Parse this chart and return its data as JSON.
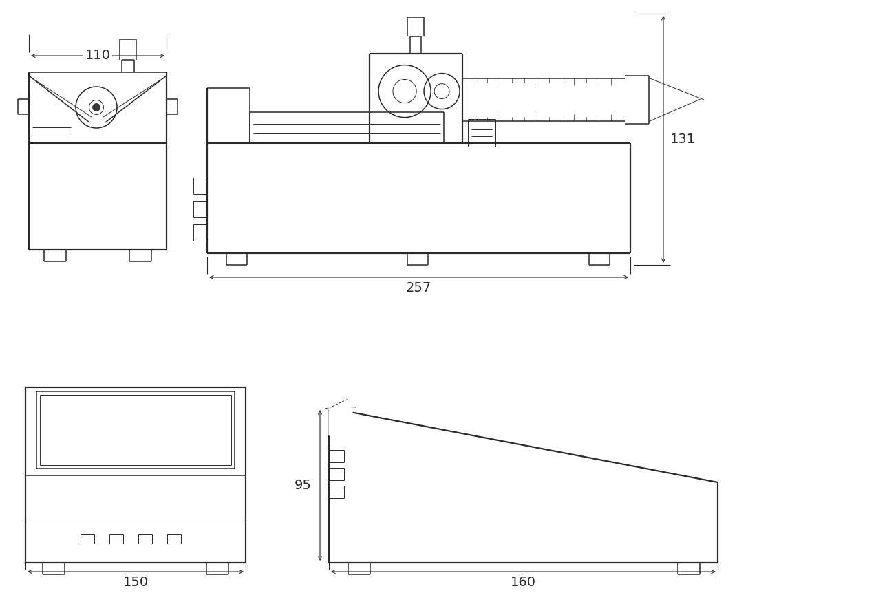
{
  "background_color": "#ffffff",
  "line_color": "#2a2a2a",
  "fig_width": 12.89,
  "fig_height": 8.91,
  "dimensions": {
    "top_left_width": "110",
    "top_right_width": "257",
    "top_right_height": "131",
    "bottom_left_width": "150",
    "bottom_right_width": "160",
    "bottom_right_height": "95"
  }
}
